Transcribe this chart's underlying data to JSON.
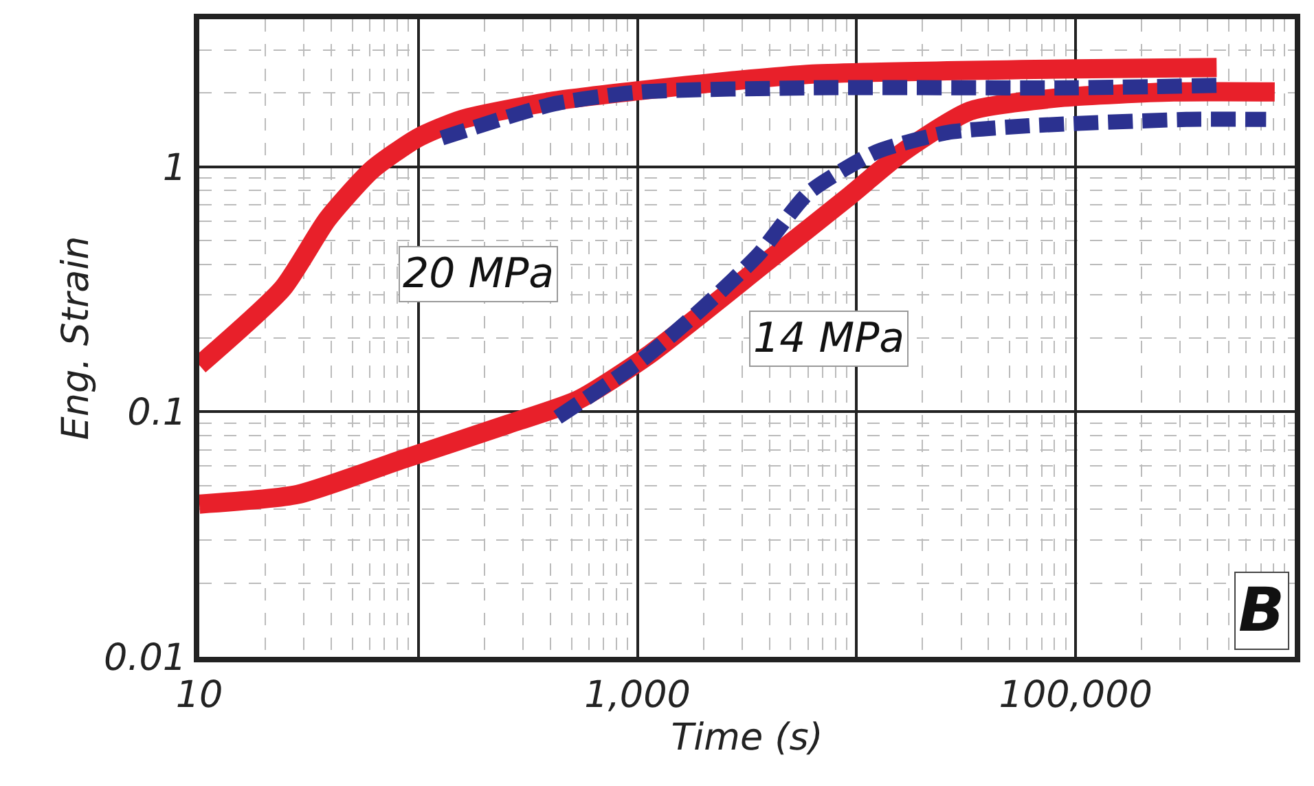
{
  "chart_data": {
    "type": "line",
    "xlabel": "Time (s)",
    "ylabel": "Eng. Strain",
    "log": "xy",
    "grid": true,
    "marker": "none",
    "xlim": [
      10,
      1000000
    ],
    "ylim": [
      0.01,
      4
    ],
    "xticks": [
      10,
      {
        "value": 100,
        "label": null
      },
      {
        "value": 1000,
        "label": "1,000"
      },
      {
        "value": 10000,
        "label": null
      },
      {
        "value": 100000,
        "label": "100,000"
      }
    ],
    "yticks": [
      0.01,
      0.1,
      1
    ],
    "series": [
      {
        "color": "#e8202a",
        "line_style": "solid",
        "x": [
          10,
          24.1,
          38.4,
          61.2,
          99,
          158,
          409,
          1040,
          2690,
          6300,
          100000,
          440000
        ],
        "values": [
          0.155,
          0.32,
          0.61,
          0.97,
          1.31,
          1.56,
          1.85,
          2.05,
          2.24,
          2.39,
          2.51,
          2.54
        ]
      },
      {
        "color": "#e8202a",
        "line_style": "solid",
        "x": [
          10,
          28.1,
          84.7,
          257,
          537,
          1120,
          3950,
          9200,
          16300,
          33000,
          88000,
          280000,
          810000
        ],
        "values": [
          0.042,
          0.046,
          0.064,
          0.089,
          0.112,
          0.17,
          0.414,
          0.755,
          1.15,
          1.69,
          1.92,
          2.02,
          2.02
        ]
      },
      {
        "color": "#2b3190",
        "line_style": "dashed",
        "x": [
          128,
          409,
          1040,
          6300,
          100000,
          450000
        ],
        "values": [
          1.31,
          1.8,
          2.02,
          2.1,
          2.1,
          2.15
        ]
      },
      {
        "color": "#2b3190",
        "line_style": "dashed",
        "x": [
          432,
          1040,
          2030,
          3580,
          6000,
          12300,
          26000,
          61000,
          320000,
          740000
        ],
        "values": [
          0.095,
          0.162,
          0.27,
          0.44,
          0.78,
          1.15,
          1.38,
          1.47,
          1.56,
          1.56
        ]
      }
    ],
    "annotations": [
      "20 MPa",
      "14 MPa",
      "B"
    ]
  }
}
